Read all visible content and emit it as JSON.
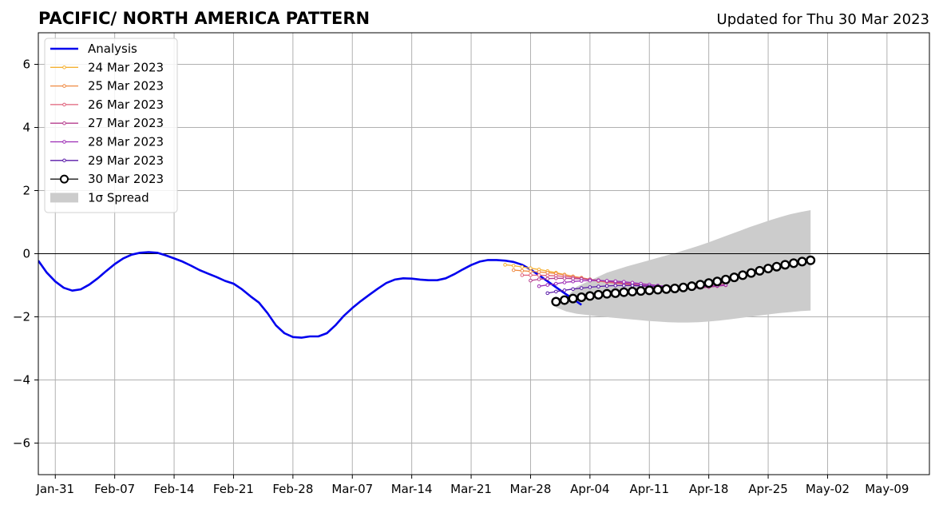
{
  "chart_data": {
    "type": "line",
    "title": "PACIFIC/ NORTH AMERICA PATTERN",
    "subtitle": "Updated for Thu 30 Mar 2023",
    "xlabel": "",
    "ylabel": "",
    "xlim": [
      "2023-01-29",
      "2023-05-14"
    ],
    "ylim": [
      -7,
      7
    ],
    "yticks": [
      -6,
      -4,
      -2,
      0,
      2,
      4,
      6
    ],
    "ytick_labels": [
      "−6",
      "−4",
      "−2",
      "0",
      "2",
      "4",
      "6"
    ],
    "xticks": [
      "2023-01-31",
      "2023-02-07",
      "2023-02-14",
      "2023-02-21",
      "2023-02-28",
      "2023-03-07",
      "2023-03-14",
      "2023-03-21",
      "2023-03-28",
      "2023-04-04",
      "2023-04-11",
      "2023-04-18",
      "2023-04-25",
      "2023-05-02",
      "2023-05-09"
    ],
    "xtick_labels": [
      "Jan-31",
      "Feb-07",
      "Feb-14",
      "Feb-21",
      "Feb-28",
      "Mar-07",
      "Mar-14",
      "Mar-21",
      "Mar-28",
      "Apr-04",
      "Apr-11",
      "Apr-18",
      "Apr-25",
      "May-02",
      "May-09"
    ],
    "grid": true,
    "zero_line": true,
    "legend_position": "top-left",
    "analysis": {
      "name": "Analysis",
      "color": "#0000ee",
      "start": "2023-01-29",
      "values": [
        -0.22,
        -0.6,
        -0.88,
        -1.08,
        -1.17,
        -1.13,
        -0.98,
        -0.78,
        -0.55,
        -0.33,
        -0.15,
        -0.03,
        0.03,
        0.05,
        0.03,
        -0.05,
        -0.15,
        -0.25,
        -0.38,
        -0.52,
        -0.63,
        -0.74,
        -0.86,
        -0.95,
        -1.13,
        -1.35,
        -1.55,
        -1.88,
        -2.27,
        -2.52,
        -2.64,
        -2.66,
        -2.62,
        -2.62,
        -2.52,
        -2.27,
        -1.97,
        -1.72,
        -1.5,
        -1.3,
        -1.11,
        -0.93,
        -0.82,
        -0.78,
        -0.79,
        -0.82,
        -0.84,
        -0.84,
        -0.78,
        -0.65,
        -0.5,
        -0.36,
        -0.25,
        -0.2,
        -0.2,
        -0.22,
        -0.26,
        -0.35,
        -0.5,
        -0.68,
        -0.87,
        -1.06,
        -1.25,
        -1.43,
        -1.62
      ]
    },
    "forecasts": [
      {
        "name": "24 Mar 2023",
        "color": "#f5b133",
        "start": "2023-03-25",
        "values": [
          -0.35,
          -0.38,
          -0.42,
          -0.46,
          -0.5,
          -0.55,
          -0.6,
          -0.66,
          -0.72,
          -0.78,
          -0.83,
          -0.87,
          -0.9,
          -0.93,
          -0.96,
          -0.99,
          -1.01,
          -1.03,
          -1.04,
          -1.05,
          -1.05,
          -1.04,
          -1.03,
          -1.01,
          -0.98,
          -0.95,
          -0.91
        ]
      },
      {
        "name": "25 Mar 2023",
        "color": "#ef8a42",
        "start": "2023-03-26",
        "values": [
          -0.52,
          -0.54,
          -0.56,
          -0.58,
          -0.6,
          -0.63,
          -0.67,
          -0.72,
          -0.76,
          -0.81,
          -0.85,
          -0.89,
          -0.93,
          -0.96,
          -0.99,
          -1.02,
          -1.04,
          -1.06,
          -1.07,
          -1.08,
          -1.08,
          -1.07,
          -1.05,
          -1.03,
          -1.0,
          -0.96
        ]
      },
      {
        "name": "26 Mar 2023",
        "color": "#e0607a",
        "start": "2023-03-27",
        "values": [
          -0.68,
          -0.68,
          -0.68,
          -0.69,
          -0.7,
          -0.72,
          -0.75,
          -0.78,
          -0.82,
          -0.86,
          -0.9,
          -0.93,
          -0.96,
          -0.99,
          -1.02,
          -1.05,
          -1.07,
          -1.09,
          -1.1,
          -1.1,
          -1.09,
          -1.07,
          -1.05,
          -1.02,
          -0.98
        ]
      },
      {
        "name": "27 Mar 2023",
        "color": "#b63e8e",
        "start": "2023-03-28",
        "values": [
          -0.85,
          -0.81,
          -0.79,
          -0.78,
          -0.78,
          -0.79,
          -0.8,
          -0.82,
          -0.84,
          -0.87,
          -0.9,
          -0.93,
          -0.96,
          -0.99,
          -1.02,
          -1.05,
          -1.07,
          -1.08,
          -1.09,
          -1.09,
          -1.08,
          -1.06,
          -1.03,
          -1.0
        ]
      },
      {
        "name": "28 Mar 2023",
        "color": "#9c2bb5",
        "start": "2023-03-29",
        "values": [
          -1.03,
          -0.99,
          -0.95,
          -0.91,
          -0.88,
          -0.86,
          -0.85,
          -0.85,
          -0.86,
          -0.87,
          -0.89,
          -0.92,
          -0.95,
          -0.98,
          -1.01,
          -1.03,
          -1.05,
          -1.06,
          -1.06,
          -1.05,
          -1.03,
          -1.01,
          -0.98
        ]
      },
      {
        "name": "29 Mar 2023",
        "color": "#5a1aa8",
        "start": "2023-03-30",
        "values": [
          -1.25,
          -1.2,
          -1.16,
          -1.12,
          -1.09,
          -1.06,
          -1.04,
          -1.02,
          -1.01,
          -1.01,
          -1.01,
          -1.02,
          -1.03,
          -1.04,
          -1.05,
          -1.05,
          -1.04,
          -1.03,
          -1.01,
          -0.98,
          -0.95,
          -0.91
        ]
      }
    ],
    "latest": {
      "name": "30 Mar 2023",
      "color": "#000000",
      "start": "2023-03-31",
      "values": [
        -1.52,
        -1.47,
        -1.42,
        -1.38,
        -1.34,
        -1.3,
        -1.27,
        -1.25,
        -1.22,
        -1.2,
        -1.18,
        -1.16,
        -1.14,
        -1.12,
        -1.1,
        -1.07,
        -1.03,
        -0.98,
        -0.93,
        -0.88,
        -0.82,
        -0.75,
        -0.68,
        -0.61,
        -0.54,
        -0.47,
        -0.41,
        -0.35,
        -0.3,
        -0.25,
        -0.21
      ]
    },
    "spread": {
      "name": "1σ Spread",
      "color": "#cccccc",
      "start": "2023-03-31",
      "upper": [
        -1.65,
        -1.4,
        -1.05,
        -0.9,
        -0.75,
        -0.6,
        -0.5,
        -0.4,
        -0.31,
        -0.22,
        -0.13,
        -0.04,
        0.05,
        0.15,
        0.25,
        0.36,
        0.48,
        0.6,
        0.72,
        0.84,
        0.95,
        1.06,
        1.16,
        1.25,
        1.32,
        1.38
      ],
      "lower": [
        -1.7,
        -1.83,
        -1.9,
        -1.94,
        -1.98,
        -2.01,
        -2.04,
        -2.07,
        -2.1,
        -2.13,
        -2.15,
        -2.17,
        -2.18,
        -2.18,
        -2.17,
        -2.15,
        -2.12,
        -2.08,
        -2.04,
        -2.0,
        -1.96,
        -1.92,
        -1.88,
        -1.85,
        -1.82,
        -1.8
      ],
      "x_dates": [
        "2023-03-31",
        "2023-04-01",
        "2023-04-02",
        "2023-04-04",
        "2023-04-06",
        "2023-04-08",
        "2023-04-10",
        "2023-04-12",
        "2023-04-14",
        "2023-04-16",
        "2023-04-18",
        "2023-04-20",
        "2023-04-22",
        "2023-04-24",
        "2023-04-26",
        "2023-04-28",
        "2023-04-30",
        "2023-05-02",
        "2023-05-04",
        "2023-05-06",
        "2023-05-08",
        "2023-05-10",
        "2023-05-12",
        "2023-05-14",
        "2023-05-16",
        "2023-04-30"
      ]
    },
    "legend_spread_label": "1σ Spread"
  }
}
